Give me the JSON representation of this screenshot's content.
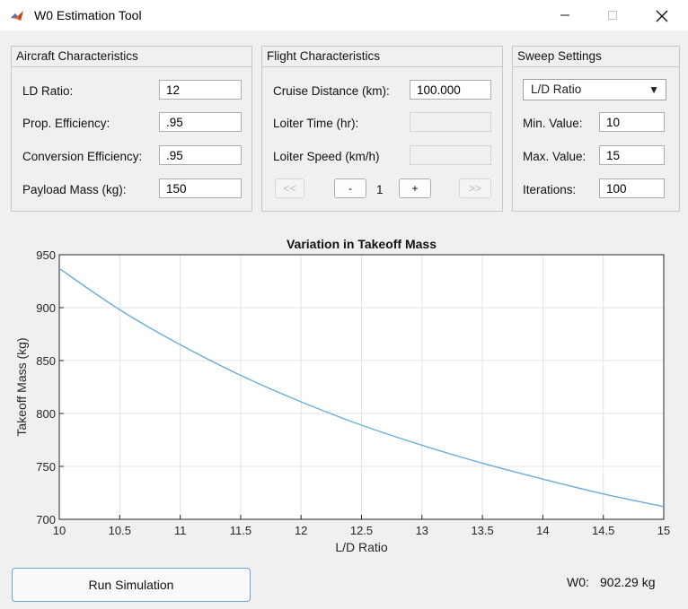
{
  "window": {
    "title": "W0 Estimation Tool",
    "min_icon": "minimize-icon",
    "max_icon": "maximize-icon",
    "close_icon": "close-icon",
    "app_icon": "matlab-logo-icon"
  },
  "aircraft": {
    "title": "Aircraft Characteristics",
    "ld_label": "LD Ratio:",
    "ld_value": "12",
    "prop_label": "Prop. Efficiency:",
    "prop_value": ".95",
    "conv_label": "Conversion Efficiency:",
    "conv_value": ".95",
    "payload_label": "Payload Mass (kg):",
    "payload_value": "150"
  },
  "flight": {
    "title": "Flight Characteristics",
    "cruise_label": "Cruise Distance (km):",
    "cruise_value": "100.000",
    "loiter_time_label": "Loiter Time (hr):",
    "loiter_time_value": "",
    "loiter_speed_label": "Loiter Speed (km/h)",
    "loiter_speed_value": "",
    "first_label": "<<",
    "minus_label": "-",
    "page_value": "1",
    "plus_label": "+",
    "last_label": ">>"
  },
  "sweep": {
    "title": "Sweep Settings",
    "param_selected": "L/D Ratio",
    "min_label": "Min. Value:",
    "min_value": "10",
    "max_label": "Max. Value:",
    "max_value": "15",
    "iter_label": "Iterations:",
    "iter_value": "100"
  },
  "chart_data": {
    "type": "line",
    "title": "Variation in Takeoff Mass",
    "xlabel": "L/D Ratio",
    "ylabel": "Takeoff Mass (kg)",
    "xlim": [
      10,
      15
    ],
    "ylim": [
      700,
      950
    ],
    "xticks": [
      10,
      10.5,
      11,
      11.5,
      12,
      12.5,
      13,
      13.5,
      14,
      14.5,
      15
    ],
    "xtick_labels": [
      "10",
      "10.5",
      "11",
      "11.5",
      "12",
      "12.5",
      "13",
      "13.5",
      "14",
      "14.5",
      "15"
    ],
    "yticks": [
      700,
      750,
      800,
      850,
      900,
      950
    ],
    "ytick_labels": [
      "700",
      "750",
      "800",
      "850",
      "900",
      "950"
    ],
    "grid": true,
    "line_color": "#6aaed6",
    "series": [
      {
        "x": [
          10,
          10.5,
          11,
          11.5,
          12,
          12.5,
          13,
          13.5,
          14,
          14.5,
          15
        ],
        "values": [
          937,
          898,
          865,
          836,
          811,
          789,
          770,
          753,
          738,
          724,
          712
        ]
      }
    ]
  },
  "footer": {
    "run_label": "Run Simulation",
    "result_label": "W0:",
    "result_value": "902.29 kg"
  }
}
